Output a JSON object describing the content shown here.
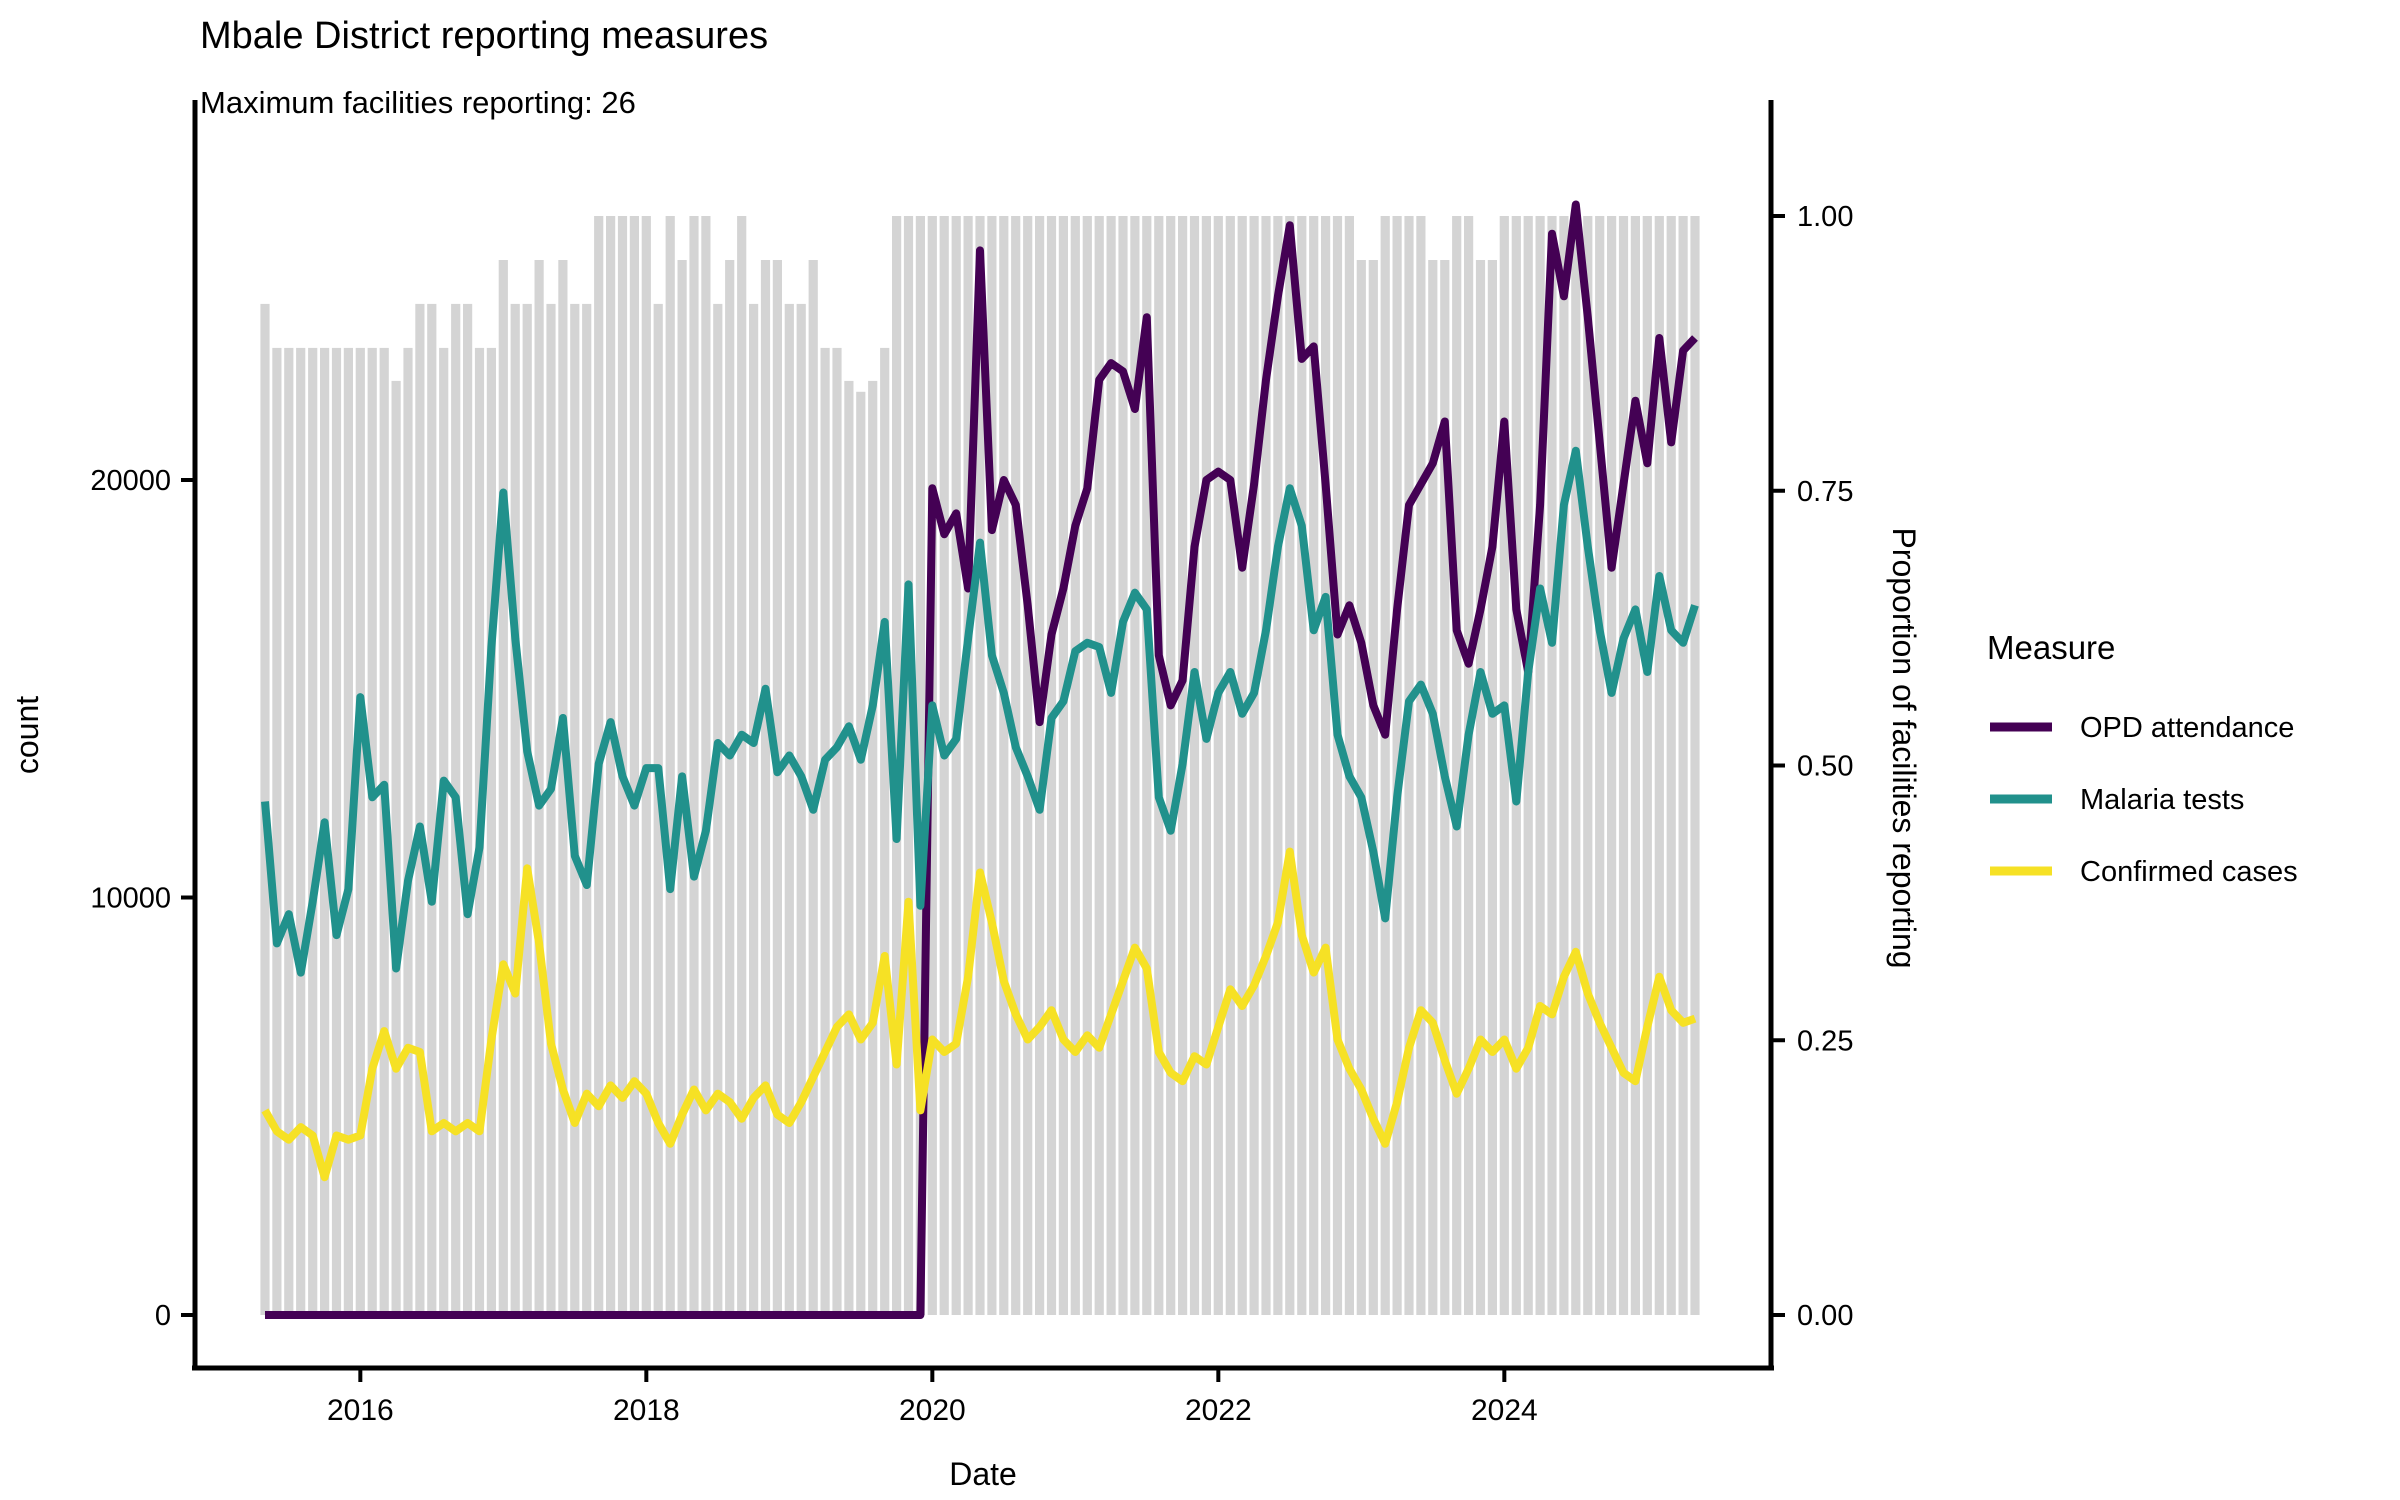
{
  "header": {
    "title": "Mbale District reporting measures",
    "subtitle": "Maximum facilities reporting: 26"
  },
  "legend": {
    "title": "Measure"
  },
  "chart_data": {
    "type": "line",
    "title": "Mbale District reporting measures",
    "subtitle": "Maximum facilities reporting: 26",
    "xlabel": "Date",
    "ylabel_left": "count",
    "ylabel_right": "Proportion of facilities reporting",
    "ylim_left": [
      0,
      20000
    ],
    "ylim_right": [
      0.0,
      1.0
    ],
    "grid": "off",
    "legend_position": "right",
    "x_axis": {
      "label": "Date",
      "ticks": [
        {
          "index": 8,
          "label": "2016"
        },
        {
          "index": 32,
          "label": "2018"
        },
        {
          "index": 56,
          "label": "2020"
        },
        {
          "index": 80,
          "label": "2022"
        },
        {
          "index": 104,
          "label": "2024"
        }
      ]
    },
    "y_left": {
      "label": "count",
      "ticks": [
        {
          "v": 0,
          "label": "0"
        },
        {
          "v": 10000,
          "label": "10000"
        },
        {
          "v": 20000,
          "label": "20000"
        }
      ]
    },
    "y_right": {
      "label": "Proportion of facilities reporting",
      "ticks": [
        {
          "v": 0.0,
          "label": "0.00"
        },
        {
          "v": 0.25,
          "label": "0.25"
        },
        {
          "v": 0.5,
          "label": "0.50"
        },
        {
          "v": 0.75,
          "label": "0.75"
        },
        {
          "v": 1.0,
          "label": "1.00"
        }
      ]
    },
    "months": [
      "2015-05",
      "2015-06",
      "2015-07",
      "2015-08",
      "2015-09",
      "2015-10",
      "2015-11",
      "2015-12",
      "2016-01",
      "2016-02",
      "2016-03",
      "2016-04",
      "2016-05",
      "2016-06",
      "2016-07",
      "2016-08",
      "2016-09",
      "2016-10",
      "2016-11",
      "2016-12",
      "2017-01",
      "2017-02",
      "2017-03",
      "2017-04",
      "2017-05",
      "2017-06",
      "2017-07",
      "2017-08",
      "2017-09",
      "2017-10",
      "2017-11",
      "2017-12",
      "2018-01",
      "2018-02",
      "2018-03",
      "2018-04",
      "2018-05",
      "2018-06",
      "2018-07",
      "2018-08",
      "2018-09",
      "2018-10",
      "2018-11",
      "2018-12",
      "2019-01",
      "2019-02",
      "2019-03",
      "2019-04",
      "2019-05",
      "2019-06",
      "2019-07",
      "2019-08",
      "2019-09",
      "2019-10",
      "2019-11",
      "2019-12",
      "2020-01",
      "2020-02",
      "2020-03",
      "2020-04",
      "2020-05",
      "2020-06",
      "2020-07",
      "2020-08",
      "2020-09",
      "2020-10",
      "2020-11",
      "2020-12",
      "2021-01",
      "2021-02",
      "2021-03",
      "2021-04",
      "2021-05",
      "2021-06",
      "2021-07",
      "2021-08",
      "2021-09",
      "2021-10",
      "2021-11",
      "2021-12",
      "2022-01",
      "2022-02",
      "2022-03",
      "2022-04",
      "2022-05",
      "2022-06",
      "2022-07",
      "2022-08",
      "2022-09",
      "2022-10",
      "2022-11",
      "2022-12",
      "2023-01",
      "2023-02",
      "2023-03",
      "2023-04",
      "2023-05",
      "2023-06",
      "2023-07",
      "2023-08",
      "2023-09",
      "2023-10",
      "2023-11",
      "2023-12",
      "2024-01",
      "2024-02",
      "2024-03",
      "2024-04",
      "2024-05",
      "2024-06",
      "2024-07",
      "2024-08",
      "2024-09",
      "2024-10",
      "2024-11",
      "2024-12",
      "2025-01",
      "2025-02",
      "2025-03",
      "2025-04",
      "2025-05"
    ],
    "bars": {
      "name": "Proportion of facilities reporting",
      "color": "#d4d4d4",
      "values": [
        0.92,
        0.88,
        0.88,
        0.88,
        0.88,
        0.88,
        0.88,
        0.88,
        0.88,
        0.88,
        0.88,
        0.85,
        0.88,
        0.92,
        0.92,
        0.88,
        0.92,
        0.92,
        0.88,
        0.88,
        0.96,
        0.92,
        0.92,
        0.96,
        0.92,
        0.96,
        0.92,
        0.92,
        1,
        1,
        1,
        1,
        1,
        0.92,
        1,
        0.96,
        1,
        1,
        0.92,
        0.96,
        1,
        0.92,
        0.96,
        0.96,
        0.92,
        0.92,
        0.96,
        0.88,
        0.88,
        0.85,
        0.84,
        0.85,
        0.88,
        1,
        1,
        1,
        1,
        1,
        1,
        1,
        1,
        1,
        1,
        1,
        1,
        1,
        1,
        1,
        1,
        1,
        1,
        1,
        1,
        1,
        1,
        1,
        1,
        1,
        1,
        1,
        1,
        1,
        1,
        1,
        1,
        1,
        1,
        1,
        1,
        1,
        1,
        1,
        0.96,
        0.96,
        1,
        1,
        1,
        1,
        0.96,
        0.96,
        1,
        1,
        0.96,
        0.96,
        1,
        1,
        1,
        1,
        1,
        1,
        1,
        1,
        1,
        1,
        1,
        1,
        1,
        1,
        1,
        1,
        1
      ]
    },
    "series": [
      {
        "name": "OPD attendance",
        "color": "#440154",
        "values": [
          0,
          0,
          0,
          0,
          0,
          0,
          0,
          0,
          0,
          0,
          0,
          0,
          0,
          0,
          0,
          0,
          0,
          0,
          0,
          0,
          0,
          0,
          0,
          0,
          0,
          0,
          0,
          0,
          0,
          0,
          0,
          0,
          0,
          0,
          0,
          0,
          0,
          0,
          0,
          0,
          0,
          0,
          0,
          0,
          0,
          0,
          0,
          0,
          0,
          0,
          0,
          0,
          0,
          0,
          0,
          0,
          19800,
          18700,
          19200,
          17400,
          25500,
          18800,
          20000,
          19400,
          17000,
          14200,
          16300,
          17400,
          18900,
          19800,
          22400,
          22800,
          22600,
          21700,
          23900,
          15800,
          14600,
          15200,
          18400,
          20000,
          20200,
          20000,
          17900,
          19900,
          22400,
          24400,
          26100,
          22900,
          23200,
          19900,
          16300,
          17000,
          16100,
          14600,
          13900,
          16900,
          19400,
          19900,
          20400,
          21400,
          16400,
          15600,
          16900,
          18400,
          21400,
          16900,
          15400,
          19400,
          25900,
          24400,
          26600,
          23900,
          20900,
          17900,
          19900,
          21900,
          20400,
          23400,
          20900,
          23100,
          23400
        ]
      },
      {
        "name": "Malaria tests",
        "color": "#21918c",
        "values": [
          12300,
          8900,
          9600,
          8200,
          9900,
          11800,
          9100,
          10200,
          14800,
          12400,
          12700,
          8300,
          10400,
          11700,
          9900,
          12800,
          12400,
          9600,
          11200,
          16000,
          19700,
          16200,
          13500,
          12200,
          12600,
          14300,
          11000,
          10300,
          13200,
          14200,
          12900,
          12200,
          13100,
          13100,
          10200,
          12900,
          10500,
          11600,
          13700,
          13400,
          13900,
          13700,
          15000,
          13000,
          13400,
          12900,
          12100,
          13300,
          13600,
          14100,
          13300,
          14600,
          16600,
          11400,
          17500,
          9800,
          14600,
          13400,
          13800,
          16200,
          18500,
          15800,
          14900,
          13600,
          12900,
          12100,
          14300,
          14700,
          15900,
          16100,
          16000,
          14900,
          16600,
          17300,
          16900,
          12400,
          11600,
          13200,
          15400,
          13800,
          14900,
          15400,
          14400,
          14900,
          16400,
          18400,
          19800,
          18900,
          16400,
          17200,
          13900,
          12900,
          12400,
          11100,
          9500,
          12400,
          14700,
          15100,
          14400,
          12900,
          11700,
          13900,
          15400,
          14400,
          14600,
          12300,
          15400,
          17400,
          16100,
          19400,
          20700,
          18400,
          16400,
          14900,
          16200,
          16900,
          15400,
          17700,
          16400,
          16100,
          17000
        ]
      },
      {
        "name": "Confirmed cases",
        "color": "#f6e125",
        "values": [
          4900,
          4400,
          4200,
          4500,
          4300,
          3300,
          4300,
          4200,
          4300,
          5900,
          6800,
          5900,
          6400,
          6300,
          4400,
          4600,
          4400,
          4600,
          4400,
          6600,
          8400,
          7700,
          10700,
          8900,
          6500,
          5400,
          4600,
          5300,
          5000,
          5500,
          5200,
          5600,
          5300,
          4600,
          4100,
          4800,
          5400,
          4900,
          5300,
          5100,
          4700,
          5200,
          5500,
          4800,
          4600,
          5100,
          5700,
          6300,
          6900,
          7200,
          6600,
          7000,
          8600,
          6000,
          9900,
          4900,
          6600,
          6300,
          6500,
          8100,
          10600,
          9400,
          8000,
          7200,
          6600,
          6900,
          7300,
          6600,
          6300,
          6700,
          6400,
          7200,
          8000,
          8800,
          8300,
          6300,
          5800,
          5600,
          6200,
          6000,
          6900,
          7800,
          7400,
          7900,
          8600,
          9400,
          11100,
          9100,
          8200,
          8800,
          6600,
          5900,
          5400,
          4700,
          4100,
          5100,
          6400,
          7300,
          7000,
          6100,
          5300,
          5900,
          6600,
          6300,
          6600,
          5900,
          6400,
          7400,
          7200,
          8100,
          8700,
          7700,
          7000,
          6400,
          5800,
          5600,
          6900,
          8100,
          7300,
          7000,
          7100
        ]
      }
    ]
  }
}
